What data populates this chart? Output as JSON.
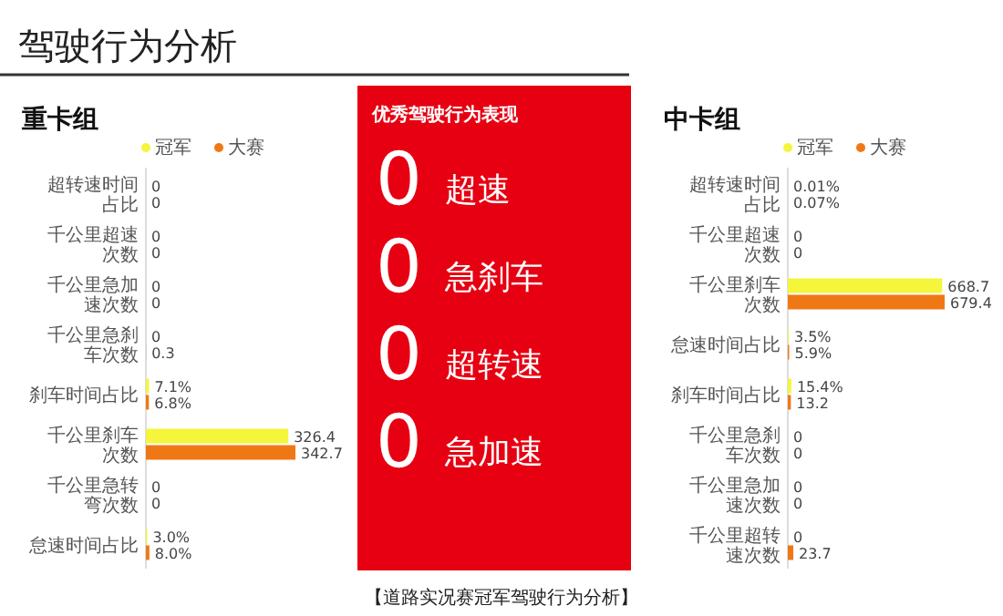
{
  "chart_data": [
    {
      "type": "other",
      "title": "驾驶行为分析",
      "annotations": [
        "【道路实况赛冠军驾驶行为分析】"
      ]
    },
    {
      "type": "bar",
      "orientation": "horizontal",
      "title": "重卡组",
      "legend": "top",
      "categories": [
        "超转速时间占比",
        "千公里超速次数",
        "千公里急加速次数",
        "千公里急刹车次数",
        "刹车时间占比",
        "千公里刹车次数",
        "千公里急转弯次数",
        "怠速时间占比"
      ],
      "series": [
        {
          "name": "冠军",
          "color": "#f5f53c",
          "values": [
            0,
            0,
            0,
            0,
            7.1,
            326.4,
            0,
            3.0
          ],
          "value_labels": [
            "0",
            "0",
            "0",
            "0",
            "7.1%",
            "326.4",
            "0",
            "3.0%"
          ]
        },
        {
          "name": "大赛",
          "color": "#f07814",
          "values": [
            0,
            0,
            0,
            0.3,
            6.8,
            342.7,
            0,
            8.0
          ],
          "value_labels": [
            "0",
            "0",
            "0",
            "0.3",
            "6.8%",
            "342.7",
            "0",
            "8.0%"
          ]
        }
      ]
    },
    {
      "type": "other",
      "title": "优秀驾驶行为表现",
      "categories": [
        "超速",
        "急刹车",
        "超转速",
        "急加速"
      ],
      "values": [
        0,
        0,
        0,
        0
      ],
      "data_labels": true,
      "color": "#e60012"
    },
    {
      "type": "bar",
      "orientation": "horizontal",
      "title": "中卡组",
      "legend": "top",
      "categories": [
        "超转速时间占比",
        "千公里超速次数",
        "千公里刹车次数",
        "怠速时间占比",
        "刹车时间占比",
        "千公里急刹车次数",
        "千公里急加速次数",
        "千公里超转速次数"
      ],
      "series": [
        {
          "name": "冠军",
          "color": "#f5f53c",
          "values": [
            0.01,
            0,
            668.7,
            3.5,
            15.4,
            0,
            0,
            0
          ],
          "value_labels": [
            "0.01%",
            "0",
            "668.7",
            "3.5%",
            "15.4%",
            "0",
            "0",
            "0"
          ]
        },
        {
          "name": "大赛",
          "color": "#f07814",
          "values": [
            0.07,
            0,
            679.4,
            5.9,
            13.2,
            0,
            0,
            23.7
          ],
          "value_labels": [
            "0.07%",
            "0",
            "679.4",
            "5.9%",
            "13.2",
            "0",
            "0",
            "23.7"
          ]
        }
      ]
    }
  ]
}
